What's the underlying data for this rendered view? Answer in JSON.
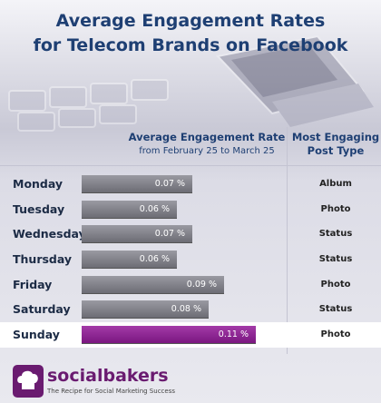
{
  "title_line1": "Average Engagement Rates",
  "title_line2": "for Telecom Brands on Facebook",
  "header_rate": "Average Engagement Rate",
  "header_rate_sub": "from February 25 to March 25",
  "header_type_line1": "Most Engaging",
  "header_type_line2": "Post Type",
  "brand": "socialbakers",
  "tagline": "The Recipe for Social Marketing Success",
  "colors": {
    "title": "#1e3f73",
    "bar_grey": "#7a7a82",
    "bar_highlight": "#8e2494",
    "brand": "#6a1b70"
  },
  "chart_data": {
    "type": "bar",
    "orientation": "horizontal",
    "title": "Average Engagement Rates for Telecom Brands on Facebook",
    "categories": [
      "Monday",
      "Tuesday",
      "Wednesday",
      "Thursday",
      "Friday",
      "Saturday",
      "Sunday"
    ],
    "values": [
      0.07,
      0.06,
      0.07,
      0.06,
      0.09,
      0.08,
      0.11
    ],
    "value_labels": [
      "0.07 %",
      "0.06 %",
      "0.07 %",
      "0.06 %",
      "0.09 %",
      "0.08 %",
      "0.11 %"
    ],
    "unit": "%",
    "xlim": [
      0,
      0.11
    ],
    "highlight": "Sunday",
    "post_types": [
      "Album",
      "Photo",
      "Status",
      "Status",
      "Photo",
      "Status",
      "Photo"
    ]
  }
}
